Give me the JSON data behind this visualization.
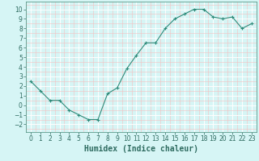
{
  "x": [
    0,
    1,
    2,
    3,
    4,
    5,
    6,
    7,
    8,
    9,
    10,
    11,
    12,
    13,
    14,
    15,
    16,
    17,
    18,
    19,
    20,
    21,
    22,
    23
  ],
  "y": [
    2.5,
    1.5,
    0.5,
    0.5,
    -0.5,
    -1.0,
    -1.5,
    -1.5,
    1.2,
    1.8,
    3.8,
    5.2,
    6.5,
    6.5,
    8.0,
    9.0,
    9.5,
    10.0,
    10.0,
    9.2,
    9.0,
    9.2,
    8.0,
    8.5
  ],
  "line_color": "#2e8b7a",
  "marker": "+",
  "marker_size": 3,
  "bg_color": "#d6f5f5",
  "grid_color": "#ffffff",
  "grid_minor_color": "#f5c0c0",
  "xlabel": "Humidex (Indice chaleur)",
  "xlim": [
    -0.5,
    23.5
  ],
  "ylim": [
    -2.8,
    10.8
  ],
  "yticks": [
    -2,
    -1,
    0,
    1,
    2,
    3,
    4,
    5,
    6,
    7,
    8,
    9,
    10
  ],
  "xticks": [
    0,
    1,
    2,
    3,
    4,
    5,
    6,
    7,
    8,
    9,
    10,
    11,
    12,
    13,
    14,
    15,
    16,
    17,
    18,
    19,
    20,
    21,
    22,
    23
  ],
  "tick_label_fontsize": 5.5,
  "xlabel_fontsize": 7.0
}
